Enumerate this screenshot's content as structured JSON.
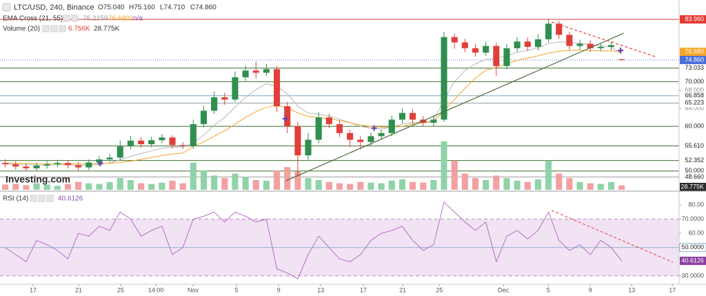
{
  "chart_data": {
    "type": "candlestick",
    "title": "LTC/USD, 240, Binance",
    "ohlc_legend": [
      "O75.040",
      "H75.160",
      "L74.710",
      "C74.860"
    ],
    "watermark": "Investing.com",
    "xlim": [
      -0.5,
      64.5
    ],
    "xticks": [
      {
        "value": 2.67,
        "label": "17"
      },
      {
        "value": 7.02,
        "label": "21"
      },
      {
        "value": 11.05,
        "label": "25"
      },
      {
        "value": 14.42,
        "label": "14:00"
      },
      {
        "value": 17.98,
        "label": "Nov"
      },
      {
        "value": 22.14,
        "label": "5"
      },
      {
        "value": 26.17,
        "label": "9"
      },
      {
        "value": 30.19,
        "label": "13"
      },
      {
        "value": 34.28,
        "label": "17"
      },
      {
        "value": 38.05,
        "label": "21"
      },
      {
        "value": 41.55,
        "label": "25"
      },
      {
        "value": 47.69,
        "label": "Dec"
      },
      {
        "value": 51.98,
        "label": "5"
      },
      {
        "value": 56.0,
        "label": "9"
      },
      {
        "value": 59.96,
        "label": "13"
      },
      {
        "value": 63.86,
        "label": "17"
      }
    ],
    "ylim": [
      45.8,
      88.3
    ],
    "yticks": [
      {
        "value": 64,
        "label": "64.000"
      },
      {
        "value": 68,
        "label": "68.000"
      }
    ],
    "up_color": "#2f8f4e",
    "down_color": "#e0403a",
    "open": [
      51.8,
      51.5,
      51.0,
      50.6,
      51.2,
      51.5,
      51.8,
      51.3,
      50.8,
      51.9,
      52.6,
      53.0,
      55.5,
      56.8,
      56.0,
      56.9,
      57.5,
      55.8,
      55.6,
      60.5,
      63.5,
      66.5,
      66.0,
      71.0,
      72.5,
      72.0,
      72.8,
      64.5,
      60.0,
      53.5,
      57.0,
      62.0,
      60.5,
      58.5,
      57.0,
      56.5,
      57.8,
      58.5,
      61.5,
      63.0,
      61.5,
      60.8,
      61.5,
      80.0,
      78.8,
      77.5,
      76.5,
      78.0,
      73.5,
      77.5,
      79.0,
      77.8,
      79.5,
      83.0,
      80.5,
      78.0,
      78.5,
      77.5,
      77.8,
      75.04
    ],
    "high": [
      52.6,
      52.2,
      51.7,
      51.9,
      52.2,
      52.5,
      52.4,
      52.0,
      52.6,
      53.4,
      53.8,
      56.8,
      57.9,
      57.6,
      57.7,
      58.3,
      58.0,
      56.5,
      61.5,
      64.6,
      67.8,
      67.5,
      72.3,
      73.6,
      74.5,
      74.0,
      73.5,
      65.5,
      61.0,
      58.5,
      63.2,
      62.8,
      61.3,
      59.2,
      57.8,
      58.6,
      59.3,
      62.4,
      64.0,
      63.8,
      62.3,
      62.5,
      81.2,
      80.8,
      79.6,
      78.4,
      79.0,
      78.8,
      78.4,
      80.0,
      79.9,
      80.6,
      84.1,
      83.6,
      81.2,
      79.4,
      79.2,
      78.6,
      79.0,
      75.16
    ],
    "low": [
      50.8,
      50.3,
      49.9,
      50.0,
      50.5,
      50.8,
      50.6,
      50.1,
      50.2,
      51.2,
      52.0,
      52.4,
      54.8,
      55.2,
      55.3,
      56.2,
      55.0,
      54.9,
      55.0,
      59.8,
      62.8,
      64.8,
      65.4,
      70.2,
      70.8,
      71.3,
      63.2,
      58.5,
      48.7,
      52.5,
      56.2,
      59.6,
      57.6,
      55.4,
      54.8,
      55.7,
      57.0,
      57.8,
      60.7,
      60.6,
      59.9,
      60.0,
      61.0,
      77.4,
      76.6,
      75.6,
      75.8,
      71.3,
      72.8,
      76.7,
      76.9,
      77.0,
      78.8,
      79.6,
      77.1,
      77.2,
      76.6,
      76.8,
      77.0,
      74.71
    ],
    "close": [
      51.5,
      51.0,
      50.6,
      51.2,
      51.5,
      51.8,
      51.3,
      50.8,
      51.9,
      52.6,
      53.0,
      55.5,
      56.8,
      56.0,
      56.9,
      57.5,
      55.8,
      55.6,
      60.5,
      63.5,
      66.5,
      66.0,
      71.0,
      72.5,
      72.0,
      72.8,
      64.5,
      60.0,
      53.5,
      57.0,
      62.0,
      60.5,
      58.5,
      57.0,
      56.5,
      57.8,
      58.5,
      61.5,
      63.0,
      61.5,
      60.8,
      61.5,
      80.0,
      78.8,
      77.5,
      76.5,
      78.0,
      73.5,
      77.5,
      79.0,
      77.8,
      79.5,
      83.0,
      80.5,
      78.0,
      78.5,
      77.5,
      77.8,
      78.2,
      74.86
    ],
    "close_label": "74.860",
    "close_color": "#4a6fd8",
    "levels": [
      {
        "value": 83.96,
        "label": "83.960",
        "color": "#e53935"
      },
      {
        "value": 73.033,
        "label": "73.033",
        "color": "#3b6e2b"
      },
      {
        "value": 70.0,
        "label": "70.000",
        "color": "#3b6e2b"
      },
      {
        "value": 66.858,
        "label": "66.858",
        "color": "#7fa9c9"
      },
      {
        "value": 65.223,
        "label": "65.223",
        "color": "#8e9aa5"
      },
      {
        "value": 60.0,
        "label": "60.000",
        "color": "#3b6e2b"
      },
      {
        "value": 55.61,
        "label": "55.610",
        "color": "#3b6e2b"
      },
      {
        "value": 52.352,
        "label": "52.352",
        "color": "#3b6e2b"
      },
      {
        "value": 50.0,
        "label": "50.000",
        "color": "#3b6e2b"
      },
      {
        "value": 48.66,
        "label": "48.660",
        "color": "#9e9e9e"
      }
    ],
    "ema": {
      "name": "EMA Cross (21, 55)",
      "note": "n/a",
      "lines": [
        {
          "color": "#b5b5b5",
          "last_label": "76.216",
          "values": [
            51.6,
            51.5,
            51.4,
            51.3,
            51.3,
            51.4,
            51.4,
            51.3,
            51.3,
            51.5,
            51.8,
            52.5,
            53.3,
            53.9,
            54.5,
            55.1,
            55.3,
            55.4,
            56.3,
            58.0,
            60.3,
            62.0,
            64.3,
            66.5,
            68.2,
            69.6,
            68.9,
            67.3,
            64.5,
            63.0,
            62.7,
            62.3,
            61.6,
            60.8,
            60.0,
            59.6,
            59.4,
            59.8,
            60.5,
            60.8,
            61.0,
            61.2,
            66.0,
            70.0,
            72.5,
            74.0,
            75.0,
            75.2,
            75.8,
            76.6,
            77.0,
            77.6,
            78.6,
            78.9,
            78.8,
            78.6,
            78.3,
            78.0,
            77.8,
            76.2159
          ]
        },
        {
          "color": "#f5a623",
          "last_label": "76.680",
          "values": [
            51.8,
            51.7,
            51.7,
            51.6,
            51.6,
            51.6,
            51.6,
            51.6,
            51.6,
            51.6,
            51.7,
            51.9,
            52.2,
            52.6,
            53.0,
            53.5,
            53.8,
            54.0,
            55.5,
            56.5,
            57.8,
            59.0,
            60.5,
            62.0,
            63.3,
            64.3,
            64.6,
            64.2,
            63.0,
            62.2,
            62.0,
            61.7,
            61.3,
            60.8,
            60.3,
            60.0,
            59.8,
            59.8,
            60.0,
            60.5,
            60.8,
            61.0,
            63.5,
            66.0,
            68.5,
            70.8,
            72.6,
            73.2,
            74.0,
            74.8,
            75.3,
            75.8,
            76.4,
            76.8,
            77.0,
            77.1,
            77.0,
            76.9,
            76.9,
            76.6802
          ]
        }
      ]
    },
    "volume": {
      "name": "Volume (20)",
      "ylim": [
        0,
        80
      ],
      "values": [
        8,
        9,
        7,
        10,
        8,
        6,
        9,
        12,
        10,
        9,
        12,
        18,
        15,
        10,
        9,
        11,
        14,
        10,
        42,
        30,
        22,
        18,
        25,
        20,
        15,
        14,
        30,
        35,
        28,
        18,
        15,
        12,
        10,
        9,
        12,
        11,
        10,
        14,
        16,
        12,
        11,
        15,
        75,
        45,
        25,
        18,
        15,
        22,
        18,
        14,
        12,
        16,
        45,
        25,
        18,
        12,
        10,
        9,
        12,
        6.756
      ],
      "last_label": "6.756K",
      "ma_label": "28.775K",
      "up_color": "#8fd3a8",
      "down_color": "#f2a0a0"
    },
    "trendlines": [
      {
        "x": [
          26.9,
          59.2
        ],
        "y": [
          47.84,
          80.87
        ],
        "color": "#4e6b3a",
        "dashed": false
      },
      {
        "x": [
          52.3,
          62.2
        ],
        "y": [
          83.34,
          75.63
        ],
        "color": "#e53935",
        "dashed": true
      }
    ],
    "signals": {
      "color": "#6a3fb5",
      "x": [
        9.1,
        26.8,
        35.3,
        58.9
      ],
      "y": [
        51.7,
        61.7,
        59.6,
        77.0
      ]
    },
    "rsi": {
      "name": "RSI (14)",
      "color": "#b96bc9",
      "ylim": [
        25.1,
        88.25
      ],
      "band": [
        30,
        70
      ],
      "band_color": "#f1e3f3",
      "yticks": [
        {
          "value": 30,
          "label": "30.0000"
        },
        {
          "value": 60,
          "label": "60.00"
        },
        {
          "value": 70,
          "label": "70.0000"
        },
        {
          "value": 80,
          "label": "80.00"
        }
      ],
      "levels": [
        {
          "value": 50,
          "label": "50.0000",
          "color": "#8fb0cf"
        }
      ],
      "values": [
        50,
        45,
        40,
        55,
        52,
        48,
        42,
        60,
        58,
        65,
        62,
        75,
        70,
        58,
        62,
        65,
        45,
        50,
        70,
        72,
        75,
        68,
        75,
        72,
        68,
        70,
        35,
        32,
        28,
        45,
        58,
        50,
        42,
        40,
        45,
        55,
        60,
        62,
        65,
        55,
        48,
        52,
        82,
        75,
        68,
        62,
        68,
        40,
        58,
        62,
        56,
        62,
        75,
        55,
        48,
        52,
        45,
        55,
        50,
        40.6126
      ],
      "trendline": {
        "x": [
          52.3,
          63.9
        ],
        "y": [
          76.1,
          39.7
        ],
        "color": "#e53935"
      }
    }
  }
}
